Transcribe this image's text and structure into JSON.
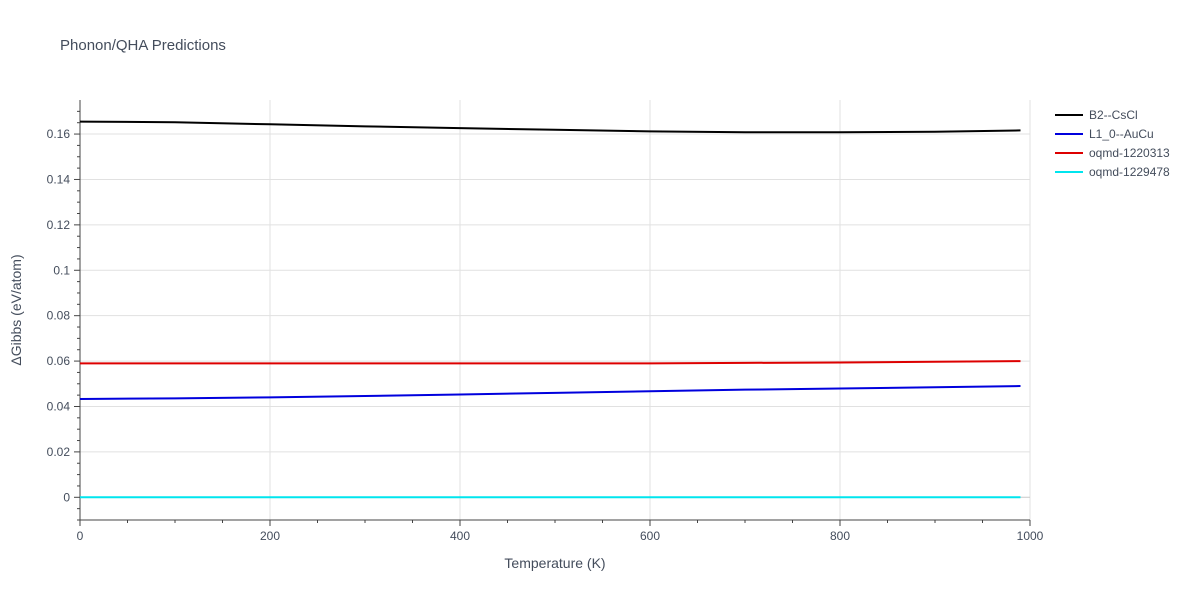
{
  "chart_data": {
    "type": "line",
    "title": "Phonon/QHA Predictions",
    "xlabel": "Temperature (K)",
    "ylabel": "ΔGibbs (eV/atom)",
    "xlim": [
      0,
      1000
    ],
    "ylim": [
      -0.01,
      0.175
    ],
    "grid": true,
    "legend": "top-right",
    "x_ticks": [
      0,
      200,
      400,
      600,
      800,
      1000
    ],
    "x_tick_labels": [
      "0",
      "200",
      "400",
      "600",
      "800",
      "1000"
    ],
    "y_ticks": [
      0,
      0.02,
      0.04,
      0.06,
      0.08,
      0.1,
      0.12,
      0.14,
      0.16
    ],
    "y_tick_labels": [
      "0",
      "0.02",
      "0.04",
      "0.06",
      "0.08",
      "0.1",
      "0.12",
      "0.14",
      "0.16"
    ],
    "x": [
      0,
      100,
      200,
      300,
      400,
      500,
      600,
      700,
      800,
      900,
      990
    ],
    "series": [
      {
        "name": "B2--CsCl",
        "color": "#000000",
        "values": [
          0.1655,
          0.1652,
          0.1643,
          0.1634,
          0.1626,
          0.1619,
          0.1612,
          0.1608,
          0.1608,
          0.161,
          0.1616
        ]
      },
      {
        "name": "L1_0--AuCu",
        "color": "#0000dd",
        "values": [
          0.0433,
          0.0436,
          0.044,
          0.0446,
          0.0453,
          0.046,
          0.0467,
          0.0474,
          0.0479,
          0.0485,
          0.049
        ]
      },
      {
        "name": "oqmd-1220313",
        "color": "#dd0000",
        "values": [
          0.059,
          0.059,
          0.059,
          0.059,
          0.059,
          0.059,
          0.059,
          0.0592,
          0.0594,
          0.0597,
          0.06
        ]
      },
      {
        "name": "oqmd-1229478",
        "color": "#00e5ee",
        "values": [
          0,
          0,
          0,
          0,
          0,
          0,
          0,
          0,
          0,
          0,
          0
        ]
      }
    ]
  }
}
